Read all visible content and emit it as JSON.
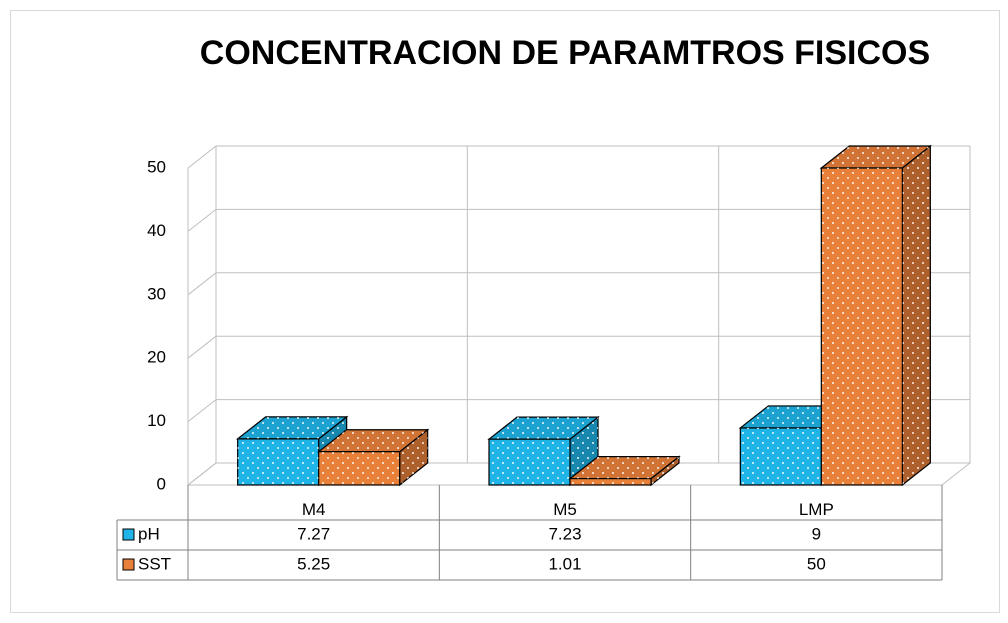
{
  "chart_data": {
    "type": "bar3d",
    "title": "CONCENTRACION DE PARAMTROS FISICOS",
    "categories": [
      "M4",
      "M5",
      "LMP"
    ],
    "series": [
      {
        "name": "pH",
        "color": "#1fb4e8",
        "values": [
          7.27,
          7.23,
          9
        ]
      },
      {
        "name": "SST",
        "color": "#e8803a",
        "values": [
          5.25,
          1.01,
          50
        ]
      }
    ],
    "ylim": [
      0,
      50
    ],
    "yticks": [
      0,
      10,
      20,
      30,
      40,
      50
    ],
    "grid": true,
    "data_table": true
  }
}
